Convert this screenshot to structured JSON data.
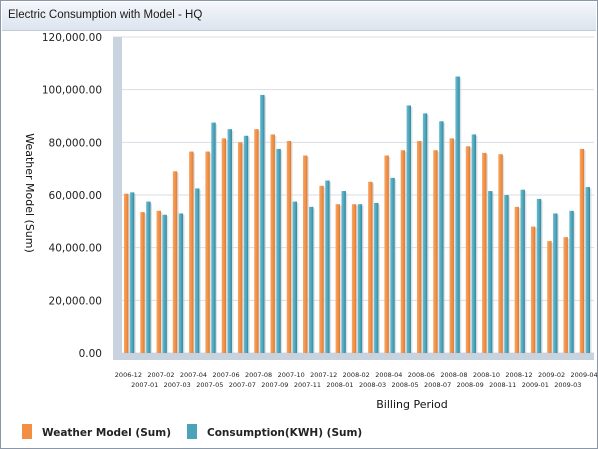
{
  "window": {
    "title": "Electric Consumption with Model - HQ"
  },
  "colors": {
    "weather": "#f28f43",
    "consumption": "#4aa3b9",
    "gridline": "#d8dde4",
    "axis_band": "#c9d3df"
  },
  "chart_data": {
    "type": "bar",
    "title": "Electric Consumption with Model - HQ",
    "xlabel": "Billing Period",
    "ylabel": "Weather Model (Sum)",
    "ylim": [
      0,
      120000
    ],
    "yticks": [
      "0.00",
      "20,000.00",
      "40,000.00",
      "60,000.00",
      "80,000.00",
      "100,000.00",
      "120,000.00"
    ],
    "categories": [
      "2006-12",
      "2007-01",
      "2007-02",
      "2007-03",
      "2007-04",
      "2007-05",
      "2007-06",
      "2007-07",
      "2007-08",
      "2007-09",
      "2007-10",
      "2007-11",
      "2007-12",
      "2008-01",
      "2008-02",
      "2008-03",
      "2008-04",
      "2008-05",
      "2008-06",
      "2008-07",
      "2008-08",
      "2008-09",
      "2008-10",
      "2008-11",
      "2008-12",
      "2009-01",
      "2009-02",
      "2009-03",
      "2009-04"
    ],
    "series": [
      {
        "name": "Weather Model (Sum)",
        "color": "#f28f43",
        "values": [
          60500,
          53500,
          54000,
          69000,
          76500,
          76500,
          81500,
          80000,
          85000,
          83000,
          80500,
          75000,
          63500,
          56500,
          56500,
          65000,
          75000,
          77000,
          80500,
          77000,
          81500,
          78500,
          76000,
          75500,
          55500,
          48000,
          42500,
          44000,
          77500
        ]
      },
      {
        "name": "Consumption(KWH) (Sum)",
        "color": "#4aa3b9",
        "values": [
          61000,
          57500,
          52500,
          53000,
          62500,
          87500,
          85000,
          82500,
          98000,
          77500,
          57500,
          55500,
          65500,
          61500,
          56500,
          57000,
          66500,
          94000,
          91000,
          88000,
          105000,
          83000,
          61500,
          60000,
          62000,
          58500,
          53000,
          54000,
          63000
        ]
      }
    ],
    "grid": true,
    "legend_position": "bottom-left"
  }
}
